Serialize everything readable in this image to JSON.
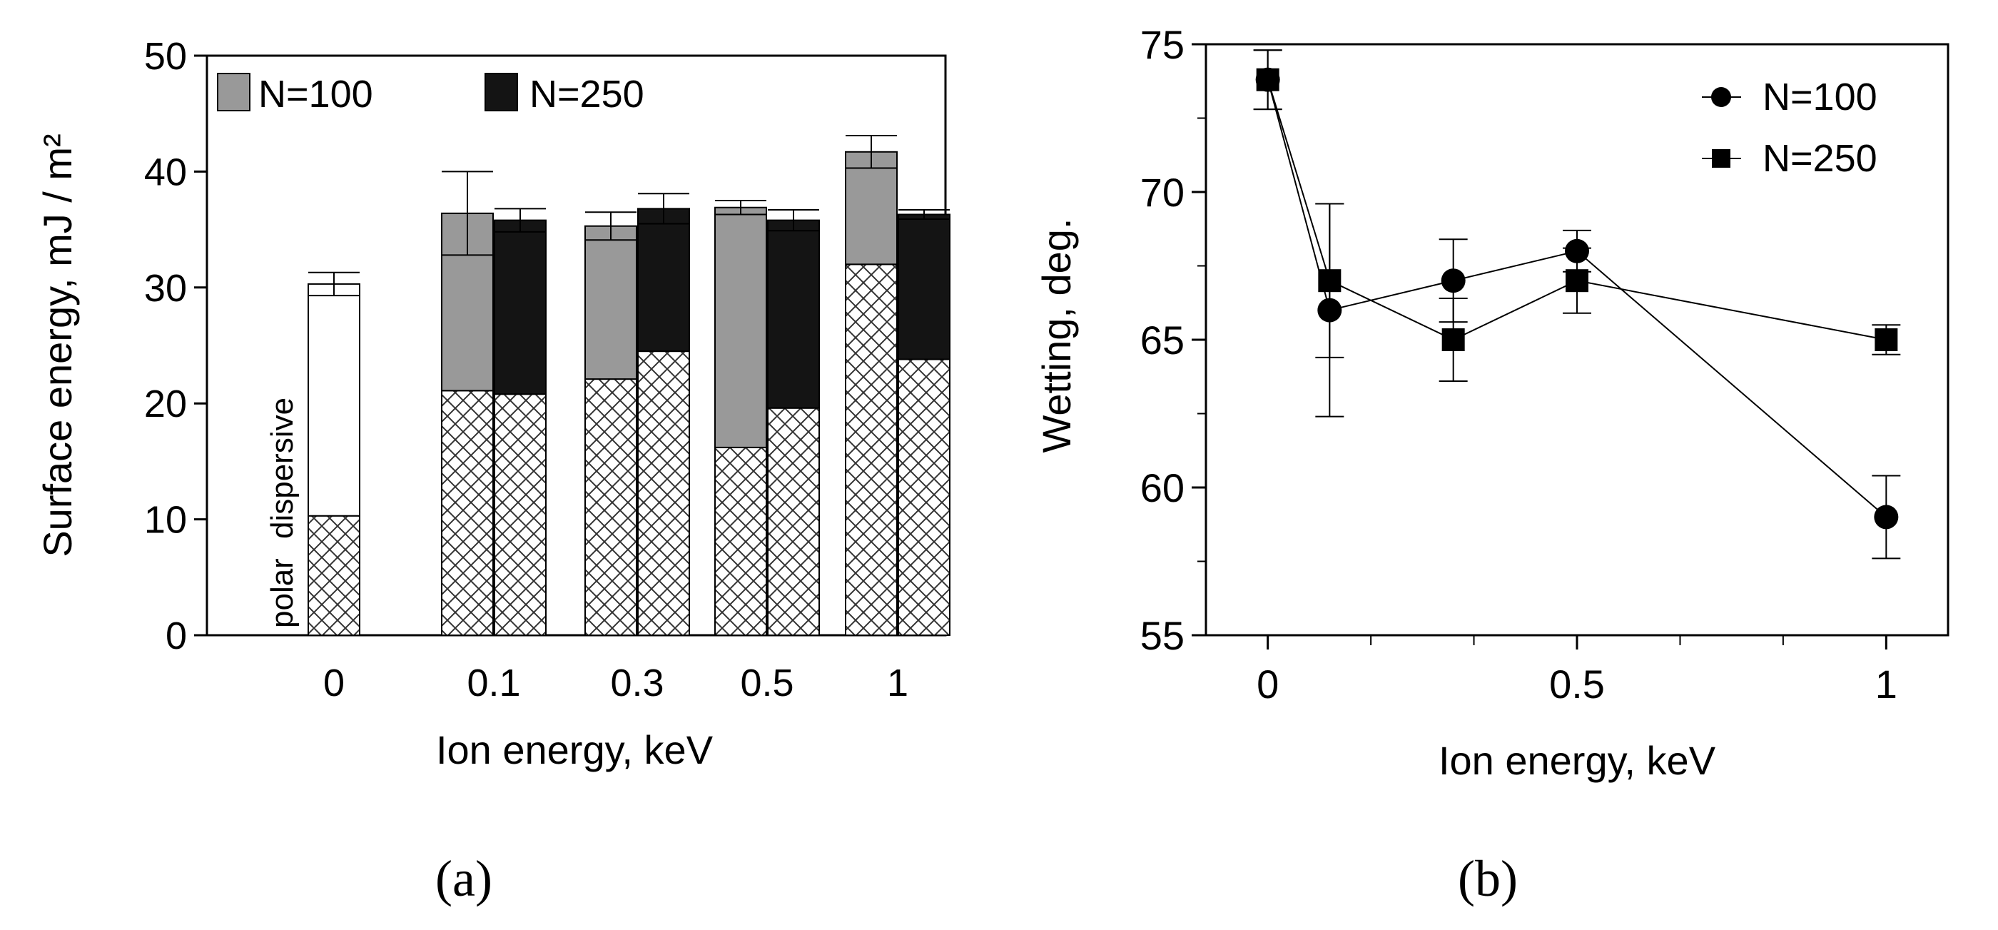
{
  "panels": {
    "a": {
      "label": "(a)"
    },
    "b": {
      "label": "(b)"
    }
  },
  "chart_data": [
    {
      "id": "a",
      "type": "bar",
      "variant": "stacked-grouped",
      "xlabel": "Ion energy, keV",
      "ylabel": "Surface energy, mJ / m²",
      "ylim": [
        0,
        50
      ],
      "yticks": [
        0,
        10,
        20,
        30,
        40,
        50
      ],
      "categories": [
        "0",
        "0.1",
        "0.3",
        "0.5",
        "1"
      ],
      "component_labels": [
        "polar",
        "dispersive"
      ],
      "legend": {
        "position": "top-left",
        "entries": [
          {
            "name": "N=100",
            "color": "#999999"
          },
          {
            "name": "N=250",
            "color": "#141414"
          }
        ]
      },
      "reference": {
        "category": "0",
        "polar": 10.3,
        "total": 30.3,
        "err": 1.0
      },
      "series": [
        {
          "name": "N=100",
          "color": "#999999",
          "polar": [
            21.1,
            22.1,
            16.2,
            32.0
          ],
          "total": [
            36.4,
            35.3,
            36.9,
            41.7
          ],
          "err": [
            3.6,
            1.2,
            0.6,
            1.4
          ]
        },
        {
          "name": "N=250",
          "color": "#141414",
          "polar": [
            20.8,
            24.5,
            19.6,
            23.8
          ],
          "total": [
            35.8,
            36.8,
            35.8,
            36.3
          ],
          "err": [
            1.0,
            1.3,
            0.9,
            0.4
          ]
        }
      ]
    },
    {
      "id": "b",
      "type": "line",
      "xlabel": "Ion energy, keV",
      "ylabel": "Wetting, deg.",
      "xlim": [
        -0.1,
        1.1
      ],
      "ylim": [
        55,
        75
      ],
      "xticks": [
        0,
        0.5,
        1
      ],
      "xticks_minor": [
        0.1667,
        0.3333,
        0.6667,
        0.8333
      ],
      "yticks": [
        55,
        60,
        65,
        70,
        75
      ],
      "legend": {
        "position": "top-right"
      },
      "series": [
        {
          "name": "N=100",
          "marker": "circle",
          "x": [
            0,
            0.1,
            0.3,
            0.5,
            1
          ],
          "y": [
            73.8,
            66,
            67,
            68,
            59
          ],
          "err": [
            1.0,
            3.6,
            1.4,
            0.7,
            1.4
          ]
        },
        {
          "name": "N=250",
          "marker": "square",
          "x": [
            0,
            0.1,
            0.3,
            0.5,
            1
          ],
          "y": [
            73.8,
            67,
            65,
            67,
            65
          ],
          "err": [
            1.0,
            2.6,
            1.4,
            1.1,
            0.5
          ]
        }
      ]
    }
  ]
}
